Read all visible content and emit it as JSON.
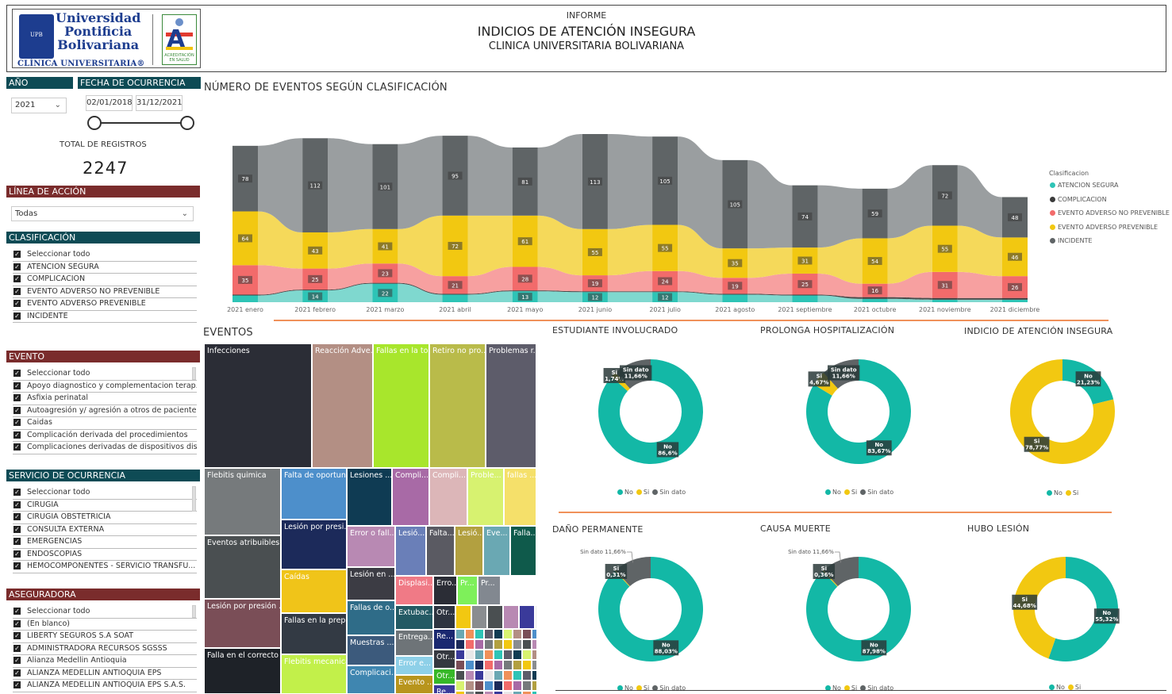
{
  "header": {
    "logo_uni_l1": "Universidad",
    "logo_uni_l2": "Pontificia",
    "logo_uni_l3": "Bolivariana",
    "logo_uni_sub": "CLÍNICA UNIVERSITARIA®",
    "logo_crest_text": "UPB",
    "logo_acred_text": "ACREDITACIÓN EN SALUD",
    "title_small": "INFORME",
    "title_main": "INDICIOS DE ATENCIÓN INSEGURA",
    "title_sub": "CLINICA UNIVERSITARIA BOLIVARIANA"
  },
  "filters": {
    "year_label": "AÑO",
    "year_value": "2021",
    "date_label": "FECHA DE OCURRENCIA",
    "date_from": "02/01/2018",
    "date_to": "31/12/2021",
    "total_label": "TOTAL DE REGISTROS",
    "total_value": "2247",
    "linea_label": "LÍNEA DE ACCIÓN",
    "linea_value": "Todas",
    "clasificacion_label": "CLASIFICACIÓN",
    "clasificacion_items": [
      "Seleccionar todo",
      "ATENCION SEGURA",
      "COMPLICACION",
      "EVENTO ADVERSO NO PREVENIBLE",
      "EVENTO ADVERSO PREVENIBLE",
      "INCIDENTE"
    ],
    "evento_label": "EVENTO",
    "evento_items": [
      "Seleccionar todo",
      "Apoyo diagnostico y complementacion terap...",
      "Asfixia perinatal",
      "Autoagresión y/ agresión a otros de paciente...",
      "Caidas",
      "Complicación derivada del procedimientos",
      "Complicaciones derivadas de dispositivos dist..."
    ],
    "servicio_label": "SERVICIO DE OCURRENCIA",
    "servicio_items": [
      "Seleccionar todo",
      "CIRUGIA",
      "CIRUGIA OBSTETRICIA",
      "CONSULTA EXTERNA",
      "EMERGENCIAS",
      "ENDOSCOPIAS",
      "HEMOCOMPONENTES - SERVICIO TRANSFU..."
    ],
    "aseguradora_label": "ASEGURADORA",
    "aseguradora_items": [
      "Seleccionar todo",
      "(En blanco)",
      "LIBERTY SEGUROS S.A SOAT",
      "ADMINISTRADORA RECURSOS SGSSS",
      "Alianza Medellin Antioquia",
      "ALIANZA MEDELLIN ANTIOQUIA EPS",
      "ALIANZA MEDELLIN ANTIOQUIA EPS S.A.S."
    ]
  },
  "chart_data": [
    {
      "type": "bar",
      "title": "NÚMERO DE EVENTOS SEGÚN CLASIFICACIÓN",
      "legend_title": "Clasificacion",
      "categories": [
        "2021 enero",
        "2021 febrero",
        "2021 marzo",
        "2021 abril",
        "2021 mayo",
        "2021 junio",
        "2021 julio",
        "2021 agosto",
        "2021 septiembre",
        "2021 octubre",
        "2021 noviembre",
        "2021 diciembre"
      ],
      "series": [
        {
          "name": "ATENCION SEGURA",
          "color": "#2ec4b6",
          "values": [
            8,
            14,
            22,
            9,
            13,
            12,
            12,
            9,
            8,
            4,
            3,
            3
          ]
        },
        {
          "name": "COMPLICACION",
          "color": "#3b3b3b",
          "values": [
            1,
            1,
            1,
            1,
            1,
            1,
            1,
            1,
            1,
            2,
            2,
            2
          ]
        },
        {
          "name": "EVENTO ADVERSO NO PREVENIBLE",
          "color": "#f26b6b",
          "values": [
            35,
            25,
            23,
            21,
            28,
            19,
            24,
            19,
            25,
            16,
            31,
            26
          ]
        },
        {
          "name": "EVENTO ADVERSO PREVENIBLE",
          "color": "#f2c811",
          "values": [
            64,
            43,
            41,
            72,
            61,
            55,
            55,
            35,
            31,
            54,
            55,
            46
          ]
        },
        {
          "name": "INCIDENTE",
          "color": "#5f6466",
          "values": [
            78,
            112,
            101,
            95,
            81,
            113,
            105,
            105,
            74,
            59,
            72,
            48
          ]
        }
      ],
      "labels": {
        "ATENCION SEGURA": [
          "",
          "14",
          "22",
          "",
          "13",
          "12",
          "12",
          "",
          "",
          "",
          "",
          ""
        ],
        "EVENTO ADVERSO NO PREVENIBLE": [
          "35",
          "25",
          "23",
          "21",
          "28",
          "19",
          "24",
          "19",
          "25",
          "16",
          "31",
          "26"
        ],
        "EVENTO ADVERSO PREVENIBLE": [
          "64",
          "43",
          "41",
          "72",
          "61",
          "55",
          "55",
          "35",
          "31",
          "54",
          "55",
          "46"
        ],
        "INCIDENTE": [
          "78",
          "112",
          "101",
          "95",
          "81",
          "113",
          "105",
          "105",
          "74",
          "59",
          "72",
          "48"
        ]
      },
      "legend_position": "right"
    },
    {
      "type": "treemap",
      "title": "EVENTOS",
      "items": [
        {
          "label": "Infecciones",
          "color": "#2b2d36"
        },
        {
          "label": "Reacción Adve...",
          "color": "#b38f84"
        },
        {
          "label": "Fallas en la to...",
          "color": "#a8e62c"
        },
        {
          "label": "Retiro no pro...",
          "color": "#b9bb4a"
        },
        {
          "label": "Problemas r...",
          "color": "#5d5c6a"
        },
        {
          "label": "Flebitis quimica",
          "color": "#767a7c"
        },
        {
          "label": "Falta de oportun...",
          "color": "#4d8fcb"
        },
        {
          "label": "Lesiones ...",
          "color": "#0f3b53"
        },
        {
          "label": "Compli...",
          "color": "#a86aa6"
        },
        {
          "label": "Compli...",
          "color": "#dcb6b8"
        },
        {
          "label": "Proble...",
          "color": "#d7f270"
        },
        {
          "label": "fallas ...",
          "color": "#f5e06a"
        },
        {
          "label": "Eventos atribuibles ...",
          "color": "#4a4f51"
        },
        {
          "label": "Lesión por presi...",
          "color": "#1c2a5a"
        },
        {
          "label": "Error o fall...",
          "color": "#b889b3"
        },
        {
          "label": "Lesió...",
          "color": "#6a7fb8"
        },
        {
          "label": "Falta...",
          "color": "#5a5a62"
        },
        {
          "label": "Lesió...",
          "color": "#b2a040"
        },
        {
          "label": "Eve...",
          "color": "#6aa8b3"
        },
        {
          "label": "Falla...",
          "color": "#0f5a4b"
        },
        {
          "label": "Lesión por presión ...",
          "color": "#7a4e57"
        },
        {
          "label": "Caídas",
          "color": "#f0c419"
        },
        {
          "label": "Lesión en ...",
          "color": "#3c3c44"
        },
        {
          "label": "Displasi...",
          "color": "#f07a86"
        },
        {
          "label": "Erro...",
          "color": "#2b2d36"
        },
        {
          "label": "Pr...",
          "color": "#7ef05a"
        },
        {
          "label": "Pr...",
          "color": "#828890"
        },
        {
          "label": "Fallas de o...",
          "color": "#2f6c88"
        },
        {
          "label": "Extubac...",
          "color": "#245a64"
        },
        {
          "label": "Otr...",
          "color": "#2e3440"
        },
        {
          "label": "Fallas en la prep...",
          "color": "#333a44"
        },
        {
          "label": "Muestras ...",
          "color": "#3c5a7c"
        },
        {
          "label": "Entrega...",
          "color": "#6e7478"
        },
        {
          "label": "Re...",
          "color": "#1a2870"
        },
        {
          "label": "Falla en el correcto ...",
          "color": "#1e2228"
        },
        {
          "label": "Flebitis mecanica",
          "color": "#c2f04a"
        },
        {
          "label": "Error e...",
          "color": "#8ed0e8"
        },
        {
          "label": "Otr...",
          "color": "#353840"
        },
        {
          "label": "Complicaci...",
          "color": "#3f86b0"
        },
        {
          "label": "Evento ...",
          "color": "#b8951c"
        },
        {
          "label": "Otr...",
          "color": "#36b828"
        },
        {
          "label": "Re...",
          "color": "#3a3a9a"
        }
      ]
    },
    {
      "type": "pie",
      "title": "ESTUDIANTE INVOLUCRADO",
      "slices": [
        {
          "name": "No",
          "value": 86.6,
          "label": "No\n86,6%",
          "color": "#13b8a6"
        },
        {
          "name": "Si",
          "value": 1.74,
          "label": "Si\n1,74%",
          "color": "#f2c811"
        },
        {
          "name": "Sin dato",
          "value": 11.66,
          "label": "Sin dato\n11,66%",
          "color": "#5f6466"
        }
      ],
      "legend": [
        "No",
        "Si",
        "Sin dato"
      ]
    },
    {
      "type": "pie",
      "title": "PROLONGA HOSPITALIZACIÓN",
      "slices": [
        {
          "name": "No",
          "value": 83.67,
          "label": "No\n83,67%",
          "color": "#13b8a6"
        },
        {
          "name": "Si",
          "value": 4.67,
          "label": "Si\n4,67%",
          "color": "#f2c811"
        },
        {
          "name": "Sin dato",
          "value": 11.66,
          "label": "Sin dato\n11,66%",
          "color": "#5f6466"
        }
      ],
      "legend": [
        "No",
        "Si",
        "Sin dato"
      ]
    },
    {
      "type": "pie",
      "title": "INDICIO DE ATENCIÓN INSEGURA",
      "slices": [
        {
          "name": "No",
          "value": 21.23,
          "label": "No\n21,23%",
          "color": "#13b8a6"
        },
        {
          "name": "Si",
          "value": 78.77,
          "label": "Si\n78,77%",
          "color": "#f2c811"
        }
      ],
      "legend": [
        "No",
        "Si"
      ]
    },
    {
      "type": "pie",
      "title": "DAÑO PERMANENTE",
      "slices": [
        {
          "name": "No",
          "value": 88.03,
          "label": "No\n88,03%",
          "color": "#13b8a6"
        },
        {
          "name": "Si",
          "value": 0.31,
          "label": "Si\n0,31%",
          "color": "#f2c811"
        },
        {
          "name": "Sin dato",
          "value": 11.66,
          "label": "Sin dato 11,66%",
          "color": "#5f6466"
        }
      ],
      "legend": [
        "No",
        "Si",
        "Sin dato"
      ]
    },
    {
      "type": "pie",
      "title": "CAUSA MUERTE",
      "slices": [
        {
          "name": "No",
          "value": 87.98,
          "label": "No\n87,98%",
          "color": "#13b8a6"
        },
        {
          "name": "Si",
          "value": 0.36,
          "label": "Si\n0,36%",
          "color": "#f2c811"
        },
        {
          "name": "Sin dato",
          "value": 11.66,
          "label": "Sin dato 11,66%",
          "color": "#5f6466"
        }
      ],
      "legend": [
        "No",
        "Si",
        "Sin dato"
      ]
    },
    {
      "type": "pie",
      "title": "HUBO LESIÓN",
      "slices": [
        {
          "name": "No",
          "value": 55.32,
          "label": "No\n55,32%",
          "color": "#13b8a6"
        },
        {
          "name": "Si",
          "value": 44.68,
          "label": "Si\n44,68%",
          "color": "#f2c811"
        }
      ],
      "legend": [
        "No",
        "Si"
      ]
    }
  ]
}
